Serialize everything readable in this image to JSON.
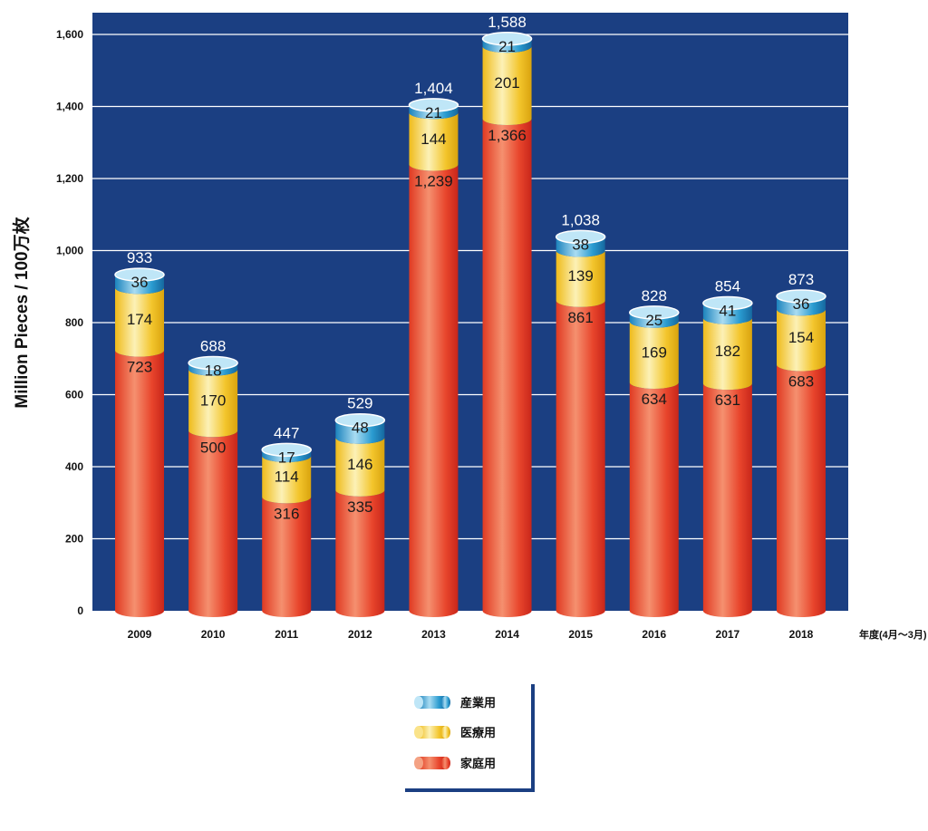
{
  "chart_data": {
    "type": "bar",
    "stacked": true,
    "style": "3d-cylinder",
    "categories": [
      "2009",
      "2010",
      "2011",
      "2012",
      "2013",
      "2014",
      "2015",
      "2016",
      "2017",
      "2018"
    ],
    "series": [
      {
        "name": "家庭用",
        "values": [
          723,
          500,
          316,
          335,
          1239,
          1366,
          861,
          634,
          631,
          683
        ],
        "labels": [
          "723",
          "500",
          "316",
          "335",
          "1,239",
          "1,366",
          "861",
          "634",
          "631",
          "683"
        ],
        "color": "#e8452c"
      },
      {
        "name": "医療用",
        "values": [
          174,
          170,
          114,
          146,
          144,
          201,
          139,
          169,
          182,
          154
        ],
        "labels": [
          "174",
          "170",
          "114",
          "146",
          "144",
          "201",
          "139",
          "169",
          "182",
          "154"
        ],
        "color": "#f3c52c"
      },
      {
        "name": "産業用",
        "values": [
          36,
          18,
          17,
          48,
          21,
          21,
          38,
          25,
          41,
          36
        ],
        "labels": [
          "36",
          "18",
          "17",
          "48",
          "21",
          "21",
          "38",
          "25",
          "41",
          "36"
        ],
        "color": "#2a9bd0"
      }
    ],
    "totals": [
      "933",
      "688",
      "447",
      "529",
      "1,404",
      "1,588",
      "1,038",
      "828",
      "854",
      "873"
    ],
    "ylabel": "Million Pieces / 100万枚",
    "xlabel_unit": "年度(4月〜3月)",
    "ylim": [
      0,
      1600
    ],
    "yticks": [
      0,
      200,
      400,
      600,
      800,
      1000,
      1200,
      1400,
      1600
    ],
    "ytick_labels": [
      "0",
      "200",
      "400",
      "600",
      "800",
      "1,000",
      "1,200",
      "1,400",
      "1,600"
    ],
    "grid": true,
    "background_color": "#1b3f82",
    "legend_position": "bottom-center",
    "legend_order": [
      "産業用",
      "医療用",
      "家庭用"
    ]
  }
}
